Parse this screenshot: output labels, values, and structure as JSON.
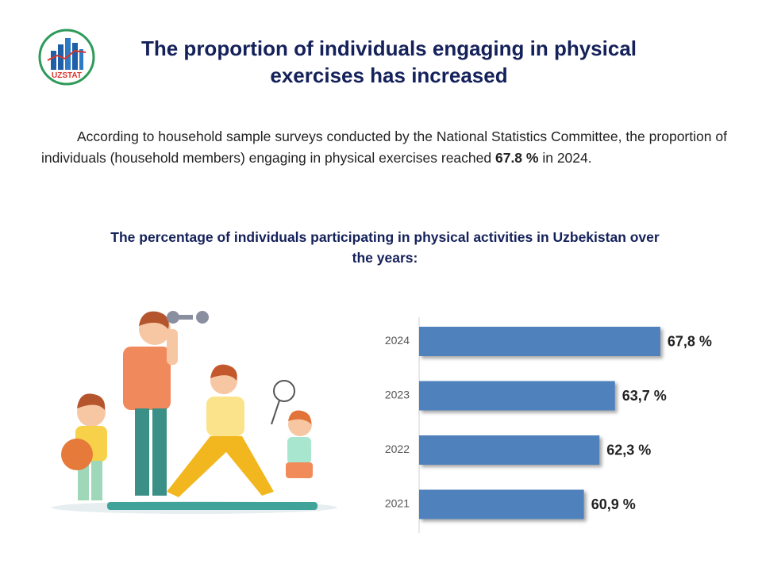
{
  "header": {
    "logo_text": "UZSTAT",
    "title": "The proportion of individuals engaging in physical exercises has increased"
  },
  "paragraph": {
    "before": "According to household sample surveys conducted by the National Statistics Committee, the proportion of individuals (household members) engaging in physical exercises reached ",
    "highlight": "67.8 %",
    "after": " in 2024."
  },
  "chart_data": {
    "type": "bar",
    "orientation": "horizontal",
    "title": "The percentage of individuals participating in physical activities in Uzbekistan over the years:",
    "categories": [
      "2024",
      "2023",
      "2022",
      "2021"
    ],
    "values": [
      67.8,
      63.7,
      62.3,
      60.9
    ],
    "value_labels": [
      "67,8 %",
      "63,7 %",
      "62,3 %",
      "60,9 %"
    ],
    "color": "#4f81bd",
    "xlim": [
      46,
      70
    ]
  }
}
